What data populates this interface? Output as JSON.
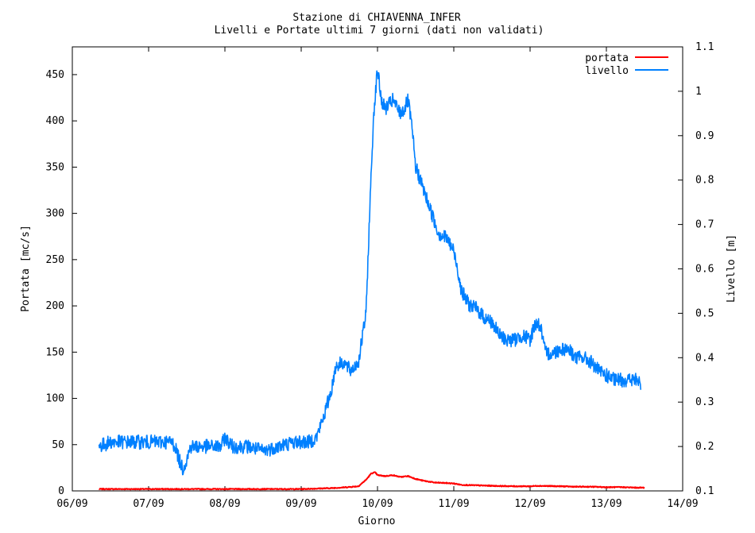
{
  "chart_data": {
    "type": "line",
    "title": "Stazione di CHIAVENNA_INFER",
    "subtitle": "Livelli e Portate ultimi 7 giorni (dati non validati)",
    "xlabel": "Giorno",
    "ylabel_left": "Portata [mc/s]",
    "ylabel_right": "Livello [m]",
    "x_ticks": [
      "06/09",
      "07/09",
      "08/09",
      "09/09",
      "10/09",
      "11/09",
      "12/09",
      "13/09",
      "14/09"
    ],
    "y_left_ticks": [
      "0",
      "50",
      "100",
      "150",
      "200",
      "250",
      "300",
      "350",
      "400",
      "450"
    ],
    "y_right_ticks": [
      "0.1",
      "0.2",
      "0.3",
      "0.4",
      "0.5",
      "0.6",
      "0.7",
      "0.8",
      "0.9",
      "1",
      "1.1"
    ],
    "xlim_days": [
      6,
      14
    ],
    "ylim_left": [
      0,
      480
    ],
    "ylim_right": [
      0.1,
      1.1
    ],
    "grid": false,
    "legend_position": "top-right",
    "series": [
      {
        "name": "portata",
        "axis": "left",
        "color": "#ff0000",
        "x": [
          6.35,
          7.0,
          8.0,
          9.0,
          9.2,
          9.4,
          9.6,
          9.75,
          9.85,
          9.92,
          9.97,
          10.0,
          10.1,
          10.2,
          10.3,
          10.4,
          10.5,
          10.6,
          10.75,
          10.9,
          11.0,
          11.1,
          11.3,
          11.5,
          11.8,
          12.0,
          12.1,
          12.4,
          12.6,
          12.8,
          13.0,
          13.2,
          13.4,
          13.5
        ],
        "y": [
          2,
          2,
          2,
          2,
          2.5,
          3,
          4,
          5,
          12,
          19,
          20,
          17,
          16,
          17,
          15,
          16,
          13,
          11,
          9,
          8.5,
          8,
          6.5,
          6,
          5.5,
          5,
          5,
          5.5,
          5,
          4.5,
          4.5,
          4,
          4,
          3.5,
          3.5
        ]
      },
      {
        "name": "livello",
        "axis": "right",
        "color": "#0080ff",
        "x": [
          6.35,
          6.5,
          6.7,
          6.9,
          7.1,
          7.3,
          7.35,
          7.4,
          7.45,
          7.5,
          7.55,
          7.6,
          7.8,
          7.95,
          8.0,
          8.1,
          8.3,
          8.5,
          8.7,
          8.9,
          9.0,
          9.1,
          9.2,
          9.3,
          9.4,
          9.45,
          9.55,
          9.65,
          9.75,
          9.85,
          9.9,
          9.95,
          10.0,
          10.05,
          10.1,
          10.2,
          10.3,
          10.35,
          10.4,
          10.45,
          10.5,
          10.6,
          10.7,
          10.8,
          10.9,
          11.0,
          11.05,
          11.1,
          11.2,
          11.3,
          11.4,
          11.5,
          11.6,
          11.7,
          11.8,
          11.9,
          12.0,
          12.05,
          12.1,
          12.15,
          12.2,
          12.3,
          12.4,
          12.5,
          12.6,
          12.7,
          12.8,
          12.9,
          13.0,
          13.1,
          13.2,
          13.3,
          13.4,
          13.45
        ],
        "y": [
          0.2,
          0.21,
          0.21,
          0.21,
          0.21,
          0.21,
          0.2,
          0.17,
          0.15,
          0.17,
          0.2,
          0.2,
          0.2,
          0.2,
          0.22,
          0.2,
          0.2,
          0.19,
          0.2,
          0.21,
          0.21,
          0.21,
          0.22,
          0.27,
          0.33,
          0.38,
          0.39,
          0.37,
          0.39,
          0.5,
          0.74,
          0.95,
          1.05,
          0.98,
          0.96,
          0.98,
          0.95,
          0.96,
          0.98,
          0.92,
          0.83,
          0.78,
          0.73,
          0.68,
          0.67,
          0.64,
          0.6,
          0.55,
          0.52,
          0.51,
          0.49,
          0.48,
          0.45,
          0.44,
          0.44,
          0.45,
          0.44,
          0.47,
          0.48,
          0.46,
          0.41,
          0.41,
          0.42,
          0.42,
          0.4,
          0.4,
          0.39,
          0.37,
          0.36,
          0.35,
          0.35,
          0.35,
          0.35,
          0.34
        ]
      }
    ]
  }
}
